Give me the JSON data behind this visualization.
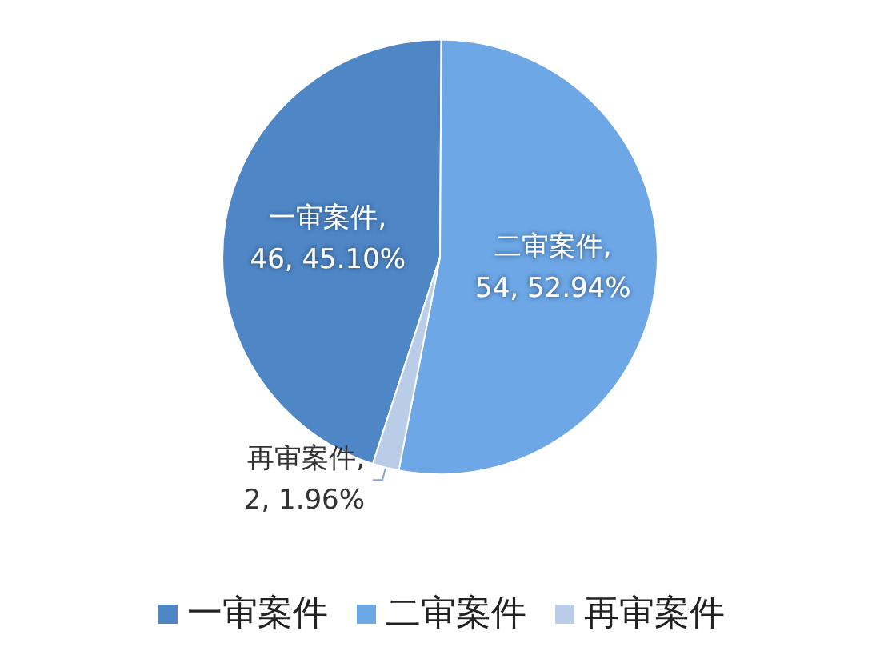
{
  "chart_data": {
    "type": "pie",
    "categories": [
      "一审案件",
      "二审案件",
      "再审案件"
    ],
    "values": [
      46,
      54,
      2
    ],
    "colors": [
      "#4f86c6",
      "#6ea7e6",
      "#b9cde9"
    ],
    "value_labels": [
      "一审案件, 46, 45.10%",
      "二审案件, 54, 52.94%",
      "再审案件, 2, 1.96%"
    ],
    "legend": "bottom"
  }
}
